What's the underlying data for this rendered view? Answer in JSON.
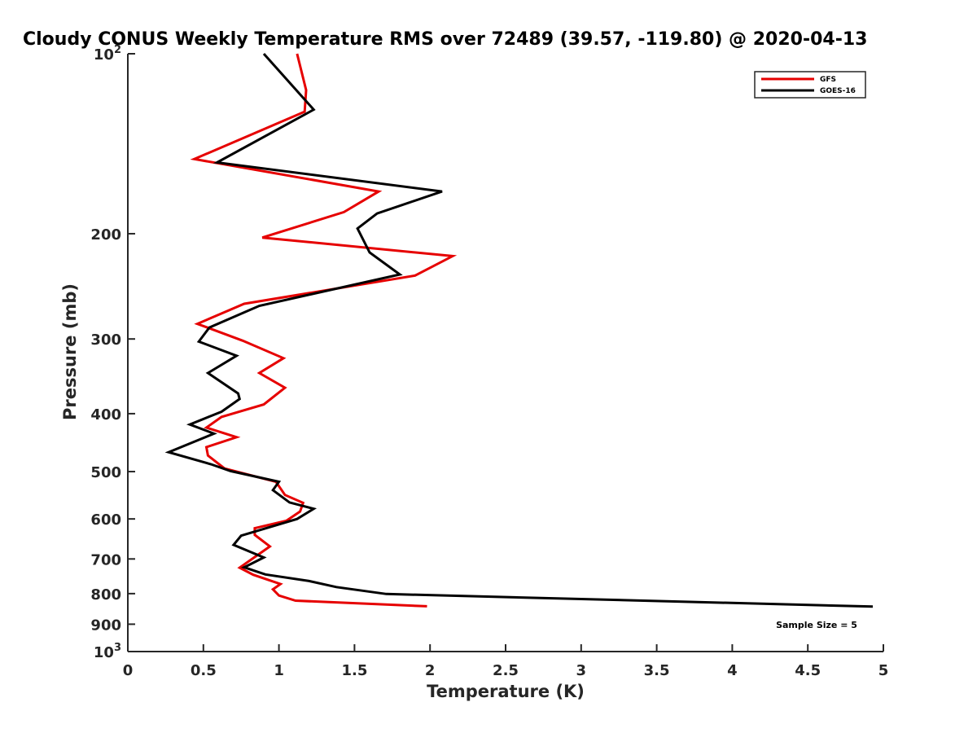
{
  "chart_data": {
    "type": "line",
    "title": "Cloudy CONUS Weekly Temperature RMS over 72489 (39.57, -119.80) @ 2020-04-13",
    "xlabel": "Temperature (K)",
    "ylabel": "Pressure (mb)",
    "xlim": [
      0,
      5
    ],
    "ylim": [
      100,
      1000
    ],
    "y_scale": "log",
    "y_reversed": true,
    "x_ticks": [
      "0",
      "0.5",
      "1",
      "1.5",
      "2",
      "2.5",
      "3",
      "3.5",
      "4",
      "4.5",
      "5"
    ],
    "y_ticks": [
      {
        "value": 100,
        "base": "10",
        "exp": "2"
      },
      {
        "value": 200,
        "label": "200"
      },
      {
        "value": 300,
        "label": "300"
      },
      {
        "value": 400,
        "label": "400"
      },
      {
        "value": 500,
        "label": "500"
      },
      {
        "value": 600,
        "label": "600"
      },
      {
        "value": 700,
        "label": "700"
      },
      {
        "value": 800,
        "label": "800"
      },
      {
        "value": 900,
        "label": "900"
      },
      {
        "value": 1000,
        "base": "10",
        "exp": "3"
      }
    ],
    "legend_position": "top-right",
    "annotation": "Sample Size = 5",
    "series": [
      {
        "name": "GFS",
        "color": "#e60000",
        "points": [
          [
            1.12,
            100
          ],
          [
            1.18,
            115
          ],
          [
            1.17,
            125
          ],
          [
            0.44,
            150
          ],
          [
            1.66,
            170
          ],
          [
            1.43,
            184
          ],
          [
            0.89,
            203
          ],
          [
            2.15,
            218
          ],
          [
            1.9,
            235
          ],
          [
            0.77,
            262
          ],
          [
            0.46,
            283
          ],
          [
            0.76,
            302
          ],
          [
            1.03,
            323
          ],
          [
            0.87,
            342
          ],
          [
            1.04,
            362
          ],
          [
            0.9,
            386
          ],
          [
            0.62,
            405
          ],
          [
            0.52,
            422
          ],
          [
            0.72,
            438
          ],
          [
            0.52,
            455
          ],
          [
            0.53,
            470
          ],
          [
            0.64,
            494
          ],
          [
            0.98,
            520
          ],
          [
            1.04,
            547
          ],
          [
            1.16,
            564
          ],
          [
            1.14,
            583
          ],
          [
            1.05,
            604
          ],
          [
            0.84,
            622
          ],
          [
            0.84,
            638
          ],
          [
            0.94,
            667
          ],
          [
            0.74,
            724
          ],
          [
            0.83,
            744
          ],
          [
            1.01,
            771
          ],
          [
            0.96,
            787
          ],
          [
            1.0,
            806
          ],
          [
            1.11,
            822
          ],
          [
            1.98,
            840
          ]
        ]
      },
      {
        "name": "GOES-16",
        "color": "#000000",
        "points": [
          [
            0.9,
            100
          ],
          [
            1.23,
            124
          ],
          [
            0.59,
            152
          ],
          [
            2.08,
            170
          ],
          [
            1.65,
            185
          ],
          [
            1.52,
            196
          ],
          [
            1.6,
            215
          ],
          [
            1.8,
            234
          ],
          [
            0.87,
            264
          ],
          [
            0.54,
            287
          ],
          [
            0.47,
            303
          ],
          [
            0.72,
            320
          ],
          [
            0.53,
            342
          ],
          [
            0.73,
            370
          ],
          [
            0.74,
            378
          ],
          [
            0.62,
            397
          ],
          [
            0.41,
            417
          ],
          [
            0.57,
            432
          ],
          [
            0.27,
            464
          ],
          [
            0.55,
            486
          ],
          [
            0.68,
            499
          ],
          [
            1.0,
            520
          ],
          [
            0.96,
            537
          ],
          [
            1.07,
            563
          ],
          [
            1.23,
            577
          ],
          [
            1.12,
            600
          ],
          [
            0.75,
            640
          ],
          [
            0.7,
            663
          ],
          [
            0.9,
            696
          ],
          [
            0.77,
            723
          ],
          [
            0.91,
            743
          ],
          [
            1.2,
            762
          ],
          [
            1.38,
            780
          ],
          [
            1.71,
            801
          ],
          [
            4.93,
            841
          ]
        ]
      }
    ]
  }
}
